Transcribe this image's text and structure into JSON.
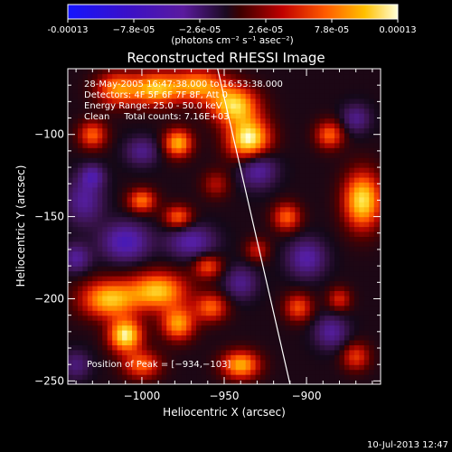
{
  "colorbar": {
    "ticks": [
      "-0.00013",
      "−7.8e-05",
      "−2.6e-05",
      "2.6e-05",
      "7.8e-05",
      "0.00013"
    ],
    "unit_label": "(photons cm⁻² s⁻¹ asec⁻²)"
  },
  "chart_data": {
    "type": "heatmap",
    "title": "Reconstructed RHESSI Image",
    "xlabel": "Heliocentric X (arcsec)",
    "ylabel": "Heliocentric Y (arcsec)",
    "xlim": [
      -1045,
      -855
    ],
    "ylim": [
      -252,
      -60
    ],
    "x_ticks": [
      -1000,
      -950,
      -900
    ],
    "y_ticks": [
      -100,
      -150,
      -200,
      -250
    ],
    "x_tick_labels": [
      "−1000",
      "−950",
      "−900"
    ],
    "y_tick_labels": [
      "−100",
      "−150",
      "−200",
      "−250"
    ],
    "color_range": [
      -0.00013,
      0.00013
    ],
    "annotations": [
      "28-May-2005 16:47:38.000 to 16:53:38.000",
      "Detectors: 4F 5F 6F 7F 8F, Att 0",
      "Energy Range: 25.0 - 50.0 keV",
      "Clean     Total counts: 7.16E+03"
    ],
    "peak_label": "Position of Peak = [−934,−103]",
    "peak": [
      -934,
      -103
    ],
    "limb_line": [
      [
        -954,
        -60
      ],
      [
        -910,
        -252
      ]
    ],
    "intensity_blobs": [
      {
        "x": -935,
        "y": -103,
        "v": 1.0,
        "sx": 9,
        "sy": 9
      },
      {
        "x": -944,
        "y": -82,
        "v": 0.85,
        "sx": 10,
        "sy": 8
      },
      {
        "x": -966,
        "y": -70,
        "v": 0.7,
        "sx": 12,
        "sy": 7
      },
      {
        "x": -992,
        "y": -72,
        "v": 0.75,
        "sx": 10,
        "sy": 7
      },
      {
        "x": -1015,
        "y": -72,
        "v": 0.65,
        "sx": 9,
        "sy": 7
      },
      {
        "x": -978,
        "y": -105,
        "v": 0.75,
        "sx": 6,
        "sy": 6
      },
      {
        "x": -1030,
        "y": -100,
        "v": 0.55,
        "sx": 6,
        "sy": 6
      },
      {
        "x": -1000,
        "y": -140,
        "v": 0.6,
        "sx": 6,
        "sy": 5
      },
      {
        "x": -978,
        "y": -150,
        "v": 0.55,
        "sx": 6,
        "sy": 5
      },
      {
        "x": -912,
        "y": -150,
        "v": 0.55,
        "sx": 6,
        "sy": 6
      },
      {
        "x": -866,
        "y": -140,
        "v": 0.9,
        "sx": 8,
        "sy": 12
      },
      {
        "x": -886,
        "y": -100,
        "v": 0.55,
        "sx": 6,
        "sy": 6
      },
      {
        "x": -1020,
        "y": -200,
        "v": 0.8,
        "sx": 12,
        "sy": 8
      },
      {
        "x": -990,
        "y": -195,
        "v": 0.8,
        "sx": 12,
        "sy": 8
      },
      {
        "x": -1010,
        "y": -222,
        "v": 0.95,
        "sx": 7,
        "sy": 7
      },
      {
        "x": -978,
        "y": -215,
        "v": 0.7,
        "sx": 7,
        "sy": 7
      },
      {
        "x": -958,
        "y": -205,
        "v": 0.55,
        "sx": 7,
        "sy": 6
      },
      {
        "x": -1000,
        "y": -240,
        "v": 0.55,
        "sx": 8,
        "sy": 6
      },
      {
        "x": -940,
        "y": -240,
        "v": 0.75,
        "sx": 8,
        "sy": 6
      },
      {
        "x": -960,
        "y": -180,
        "v": 0.5,
        "sx": 6,
        "sy": 5
      },
      {
        "x": -905,
        "y": -205,
        "v": 0.5,
        "sx": 6,
        "sy": 6
      },
      {
        "x": -870,
        "y": -235,
        "v": 0.45,
        "sx": 6,
        "sy": 6
      },
      {
        "x": -880,
        "y": -200,
        "v": 0.4,
        "sx": 5,
        "sy": 5
      },
      {
        "x": -930,
        "y": -170,
        "v": 0.35,
        "sx": 5,
        "sy": 5
      },
      {
        "x": -955,
        "y": -130,
        "v": 0.3,
        "sx": 6,
        "sy": 6
      },
      {
        "x": -1010,
        "y": -165,
        "v": -0.55,
        "sx": 10,
        "sy": 8
      },
      {
        "x": -970,
        "y": -165,
        "v": -0.45,
        "sx": 10,
        "sy": 7
      },
      {
        "x": -930,
        "y": -120,
        "v": -0.5,
        "sx": 8,
        "sy": 8
      },
      {
        "x": -1035,
        "y": -140,
        "v": -0.4,
        "sx": 8,
        "sy": 10
      },
      {
        "x": -1040,
        "y": -175,
        "v": -0.4,
        "sx": 6,
        "sy": 6
      },
      {
        "x": -900,
        "y": -175,
        "v": -0.45,
        "sx": 8,
        "sy": 8
      },
      {
        "x": -885,
        "y": -220,
        "v": -0.4,
        "sx": 7,
        "sy": 7
      },
      {
        "x": -1000,
        "y": -110,
        "v": -0.35,
        "sx": 7,
        "sy": 6
      },
      {
        "x": -870,
        "y": -90,
        "v": -0.35,
        "sx": 6,
        "sy": 6
      },
      {
        "x": -940,
        "y": -190,
        "v": -0.35,
        "sx": 7,
        "sy": 7
      },
      {
        "x": -1030,
        "y": -125,
        "v": -0.4,
        "sx": 5,
        "sy": 5
      },
      {
        "x": -1040,
        "y": -240,
        "v": -0.3,
        "sx": 6,
        "sy": 6
      }
    ]
  },
  "footer": {
    "timestamp": "10-Jul-2013 12:47"
  },
  "colors": {
    "background": "#000000",
    "limb_line": "#ffffff"
  }
}
